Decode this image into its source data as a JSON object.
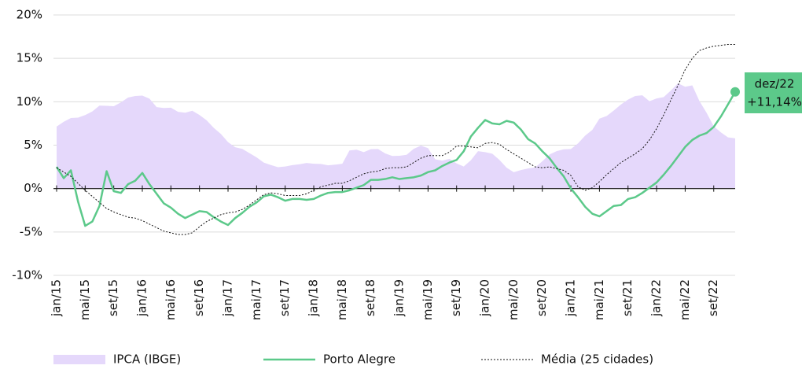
{
  "chart_data": {
    "type": "area-line",
    "categories": [
      "jan/15",
      null,
      null,
      null,
      "mai/15",
      null,
      null,
      null,
      "set/15",
      null,
      null,
      null,
      "jan/16",
      null,
      null,
      null,
      "mai/16",
      null,
      null,
      null,
      "set/16",
      null,
      null,
      null,
      "jan/17",
      null,
      null,
      null,
      "mai/17",
      null,
      null,
      null,
      "set/17",
      null,
      null,
      null,
      "jan/18",
      null,
      null,
      null,
      "mai/18",
      null,
      null,
      null,
      "set/18",
      null,
      null,
      null,
      "jan/19",
      null,
      null,
      null,
      "mai/19",
      null,
      null,
      null,
      "set/19",
      null,
      null,
      null,
      "jan/20",
      null,
      null,
      null,
      "mai/20",
      null,
      null,
      null,
      "set/20",
      null,
      null,
      null,
      "jan/21",
      null,
      null,
      null,
      "mai/21",
      null,
      null,
      null,
      "set/21",
      null,
      null,
      null,
      "jan/22",
      null,
      null,
      null,
      "mai/22",
      null,
      null,
      null,
      "set/22",
      null,
      null,
      null
    ],
    "series": [
      {
        "name": "IPCA (IBGE)",
        "kind": "area",
        "color": "#e5d8fb",
        "values": [
          7.14,
          7.7,
          8.13,
          8.17,
          8.47,
          8.89,
          9.56,
          9.53,
          9.49,
          9.93,
          10.48,
          10.67,
          10.71,
          10.36,
          9.39,
          9.28,
          9.32,
          8.84,
          8.74,
          8.97,
          8.48,
          7.87,
          6.99,
          6.29,
          5.35,
          4.76,
          4.57,
          4.08,
          3.6,
          3.0,
          2.71,
          2.46,
          2.54,
          2.7,
          2.8,
          2.95,
          2.86,
          2.84,
          2.68,
          2.76,
          2.86,
          4.39,
          4.48,
          4.19,
          4.53,
          4.56,
          4.05,
          3.75,
          3.78,
          3.89,
          4.58,
          4.94,
          4.66,
          3.37,
          3.22,
          3.43,
          2.89,
          2.54,
          3.27,
          4.31,
          4.19,
          4.01,
          3.3,
          2.4,
          1.88,
          2.13,
          2.31,
          2.44,
          3.14,
          3.92,
          4.31,
          4.52,
          4.56,
          5.2,
          6.1,
          6.76,
          8.06,
          8.35,
          8.99,
          9.68,
          10.25,
          10.67,
          10.74,
          10.06,
          10.38,
          10.54,
          11.3,
          12.13,
          11.73,
          11.89,
          10.07,
          8.73,
          7.17,
          6.47,
          5.9,
          5.79
        ]
      },
      {
        "name": "Porto Alegre",
        "kind": "line",
        "color": "#5cc98a",
        "values": [
          2.5,
          1.2,
          2.1,
          -1.5,
          -4.3,
          -3.8,
          -2.0,
          2.0,
          -0.3,
          -0.5,
          0.5,
          0.9,
          1.8,
          0.5,
          -0.6,
          -1.7,
          -2.2,
          -2.9,
          -3.4,
          -3.0,
          -2.6,
          -2.7,
          -3.3,
          -3.8,
          -4.2,
          -3.4,
          -2.8,
          -2.1,
          -1.6,
          -0.9,
          -0.7,
          -1.0,
          -1.4,
          -1.2,
          -1.2,
          -1.3,
          -1.2,
          -0.8,
          -0.5,
          -0.4,
          -0.4,
          -0.2,
          0.1,
          0.4,
          1.0,
          1.0,
          1.1,
          1.3,
          1.1,
          1.2,
          1.3,
          1.5,
          1.9,
          2.1,
          2.6,
          3.0,
          3.3,
          4.3,
          6.0,
          7.0,
          7.9,
          7.5,
          7.4,
          7.8,
          7.6,
          6.8,
          5.7,
          5.2,
          4.3,
          3.5,
          2.4,
          1.4,
          0.0,
          -1.0,
          -2.1,
          -2.9,
          -3.2,
          -2.6,
          -2.0,
          -1.9,
          -1.2,
          -1.0,
          -0.5,
          0.1,
          0.7,
          1.6,
          2.6,
          3.7,
          4.8,
          5.6,
          6.1,
          6.4,
          7.1,
          8.3,
          9.7,
          11.14
        ]
      },
      {
        "name": "Média (25 cidades)",
        "kind": "dotted",
        "color": "#111111",
        "values": [
          2.4,
          1.9,
          1.4,
          0.6,
          -0.2,
          -0.9,
          -1.6,
          -2.3,
          -2.7,
          -3.0,
          -3.3,
          -3.4,
          -3.7,
          -4.1,
          -4.5,
          -4.9,
          -5.1,
          -5.3,
          -5.3,
          -5.1,
          -4.4,
          -3.8,
          -3.4,
          -3.0,
          -2.8,
          -2.7,
          -2.4,
          -1.9,
          -1.3,
          -0.7,
          -0.5,
          -0.6,
          -0.8,
          -0.8,
          -0.8,
          -0.6,
          -0.2,
          0.2,
          0.4,
          0.6,
          0.6,
          0.9,
          1.3,
          1.7,
          1.9,
          2.0,
          2.3,
          2.4,
          2.4,
          2.5,
          3.0,
          3.5,
          3.8,
          3.8,
          3.8,
          4.2,
          4.9,
          4.9,
          4.8,
          4.7,
          5.2,
          5.3,
          5.1,
          4.5,
          4.0,
          3.5,
          3.0,
          2.5,
          2.4,
          2.5,
          2.3,
          2.1,
          1.5,
          0.2,
          -0.2,
          0.1,
          0.8,
          1.6,
          2.3,
          3.0,
          3.5,
          4.0,
          4.6,
          5.6,
          6.9,
          8.5,
          10.2,
          11.9,
          13.7,
          15.0,
          15.9,
          16.2,
          16.4,
          16.5,
          16.6,
          16.6
        ]
      }
    ],
    "annotation": {
      "x_label": "dez/22",
      "value_label": "+11,14%",
      "series": 1,
      "index": 95
    },
    "ylim": [
      -10,
      20
    ],
    "yticks": [
      {
        "value": -10,
        "label": "-10%"
      },
      {
        "value": -5,
        "label": "-5%"
      },
      {
        "value": 0,
        "label": "0%"
      },
      {
        "value": 5,
        "label": "5%"
      },
      {
        "value": 10,
        "label": "10%"
      },
      {
        "value": 15,
        "label": "15%"
      },
      {
        "value": 20,
        "label": "20%"
      }
    ],
    "grid": true
  }
}
